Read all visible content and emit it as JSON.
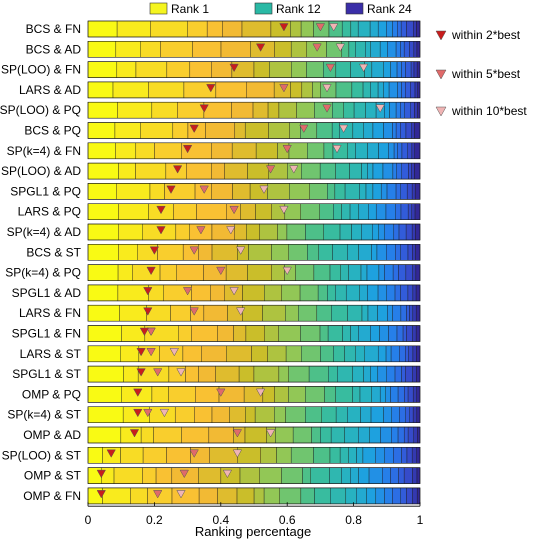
{
  "chart_data": {
    "type": "bar",
    "orientation": "horizontal-stacked",
    "xlabel": "Ranking percentage",
    "xlim": [
      0,
      1
    ],
    "xticks": [
      "0",
      "0.2",
      "0.4",
      "0.6",
      "0.8",
      "1"
    ],
    "color_legend": [
      {
        "label": "Rank 1",
        "color": "#f5f51f"
      },
      {
        "label": "Rank 12",
        "color": "#2ab9a5"
      },
      {
        "label": "Rank 24",
        "color": "#3a2ea8"
      }
    ],
    "marker_legend": [
      {
        "label": "within 2*best",
        "color": "#c81d1d"
      },
      {
        "label": "within 5*best",
        "color": "#e06a6a"
      },
      {
        "label": "within 10*best",
        "color": "#f0b4b4"
      }
    ],
    "rows": [
      {
        "label": "BCS & FN",
        "within_2": 0.59,
        "within_5": 0.7,
        "within_10": 0.74
      },
      {
        "label": "BCS & AD",
        "within_2": 0.52,
        "within_5": 0.69,
        "within_10": 0.76
      },
      {
        "label": "SP(LOO) & FN",
        "within_2": 0.44,
        "within_5": 0.73,
        "within_10": 0.83
      },
      {
        "label": "LARS & AD",
        "within_2": 0.37,
        "within_5": 0.59,
        "within_10": 0.72
      },
      {
        "label": "SP(LOO) & PQ",
        "within_2": 0.35,
        "within_5": 0.72,
        "within_10": 0.88
      },
      {
        "label": "BCS & PQ",
        "within_2": 0.32,
        "within_5": 0.65,
        "within_10": 0.77
      },
      {
        "label": "SP(k=4) & FN",
        "within_2": 0.3,
        "within_5": 0.6,
        "within_10": 0.75
      },
      {
        "label": "SP(LOO) & AD",
        "within_2": 0.27,
        "within_5": 0.55,
        "within_10": 0.62
      },
      {
        "label": "SPGL1 & PQ",
        "within_2": 0.25,
        "within_5": 0.35,
        "within_10": 0.53
      },
      {
        "label": "LARS & PQ",
        "within_2": 0.22,
        "within_5": 0.44,
        "within_10": 0.59
      },
      {
        "label": "SP(k=4) & AD",
        "within_2": 0.22,
        "within_5": 0.34,
        "within_10": 0.43
      },
      {
        "label": "BCS & ST",
        "within_2": 0.2,
        "within_5": 0.32,
        "within_10": 0.46
      },
      {
        "label": "SP(k=4) & PQ",
        "within_2": 0.19,
        "within_5": 0.4,
        "within_10": 0.6
      },
      {
        "label": "SPGL1 & AD",
        "within_2": 0.18,
        "within_5": 0.3,
        "within_10": 0.44
      },
      {
        "label": "LARS & FN",
        "within_2": 0.18,
        "within_5": 0.32,
        "within_10": 0.46
      },
      {
        "label": "SPGL1 & FN",
        "within_2": 0.17,
        "within_5": 0.19,
        "within_10": 0.19
      },
      {
        "label": "LARS & ST",
        "within_2": 0.16,
        "within_5": 0.19,
        "within_10": 0.26
      },
      {
        "label": "SPGL1 & ST",
        "within_2": 0.16,
        "within_5": 0.21,
        "within_10": 0.28
      },
      {
        "label": "OMP & PQ",
        "within_2": 0.15,
        "within_5": 0.4,
        "within_10": 0.52
      },
      {
        "label": "SP(k=4) & ST",
        "within_2": 0.15,
        "within_5": 0.18,
        "within_10": 0.23
      },
      {
        "label": "OMP & AD",
        "within_2": 0.14,
        "within_5": 0.45,
        "within_10": 0.55
      },
      {
        "label": "SP(LOO) & ST",
        "within_2": 0.07,
        "within_5": 0.32,
        "within_10": 0.45
      },
      {
        "label": "OMP & ST",
        "within_2": 0.04,
        "within_5": 0.29,
        "within_10": 0.42
      },
      {
        "label": "OMP & FN",
        "within_2": 0.04,
        "within_5": 0.21,
        "within_10": 0.28
      }
    ]
  }
}
